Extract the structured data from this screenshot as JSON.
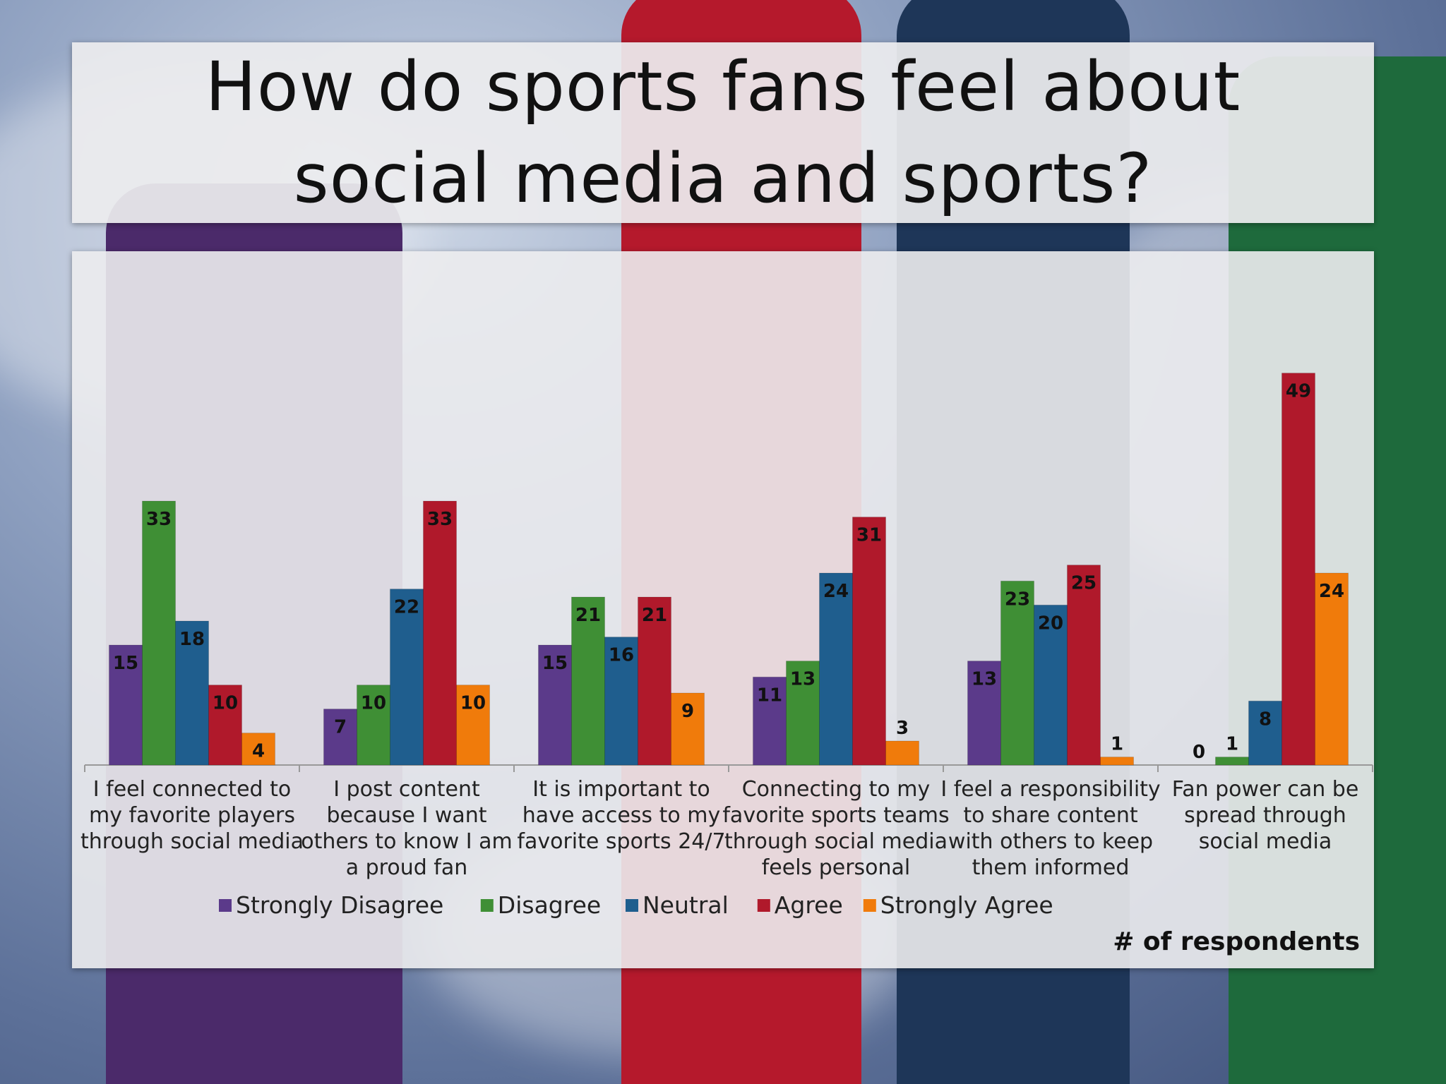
{
  "title": "How do sports fans feel about\nsocial media and sports?",
  "chart_data": {
    "type": "bar",
    "categories": [
      [
        "I feel connected to",
        "my favorite players",
        "through social media"
      ],
      [
        "I post content",
        "because I want",
        "others to know I am",
        "a proud fan"
      ],
      [
        "It is important to",
        "have access to my",
        "favorite sports 24/7"
      ],
      [
        "Connecting to my",
        "favorite sports teams",
        "through social media",
        "feels personal"
      ],
      [
        "I feel a responsibility",
        "to share content",
        "with others to keep",
        "them informed"
      ],
      [
        "Fan power can be",
        "spread through",
        "social media"
      ]
    ],
    "series": [
      {
        "name": "Strongly Disagree",
        "color": "#5b3a8a",
        "values": [
          15,
          7,
          15,
          11,
          13,
          0
        ]
      },
      {
        "name": "Disagree",
        "color": "#3f8f35",
        "values": [
          33,
          10,
          21,
          13,
          23,
          1
        ]
      },
      {
        "name": "Neutral",
        "color": "#1f5e8e",
        "values": [
          18,
          22,
          16,
          24,
          20,
          8
        ]
      },
      {
        "name": "Agree",
        "color": "#b0192b",
        "values": [
          10,
          33,
          21,
          31,
          25,
          49
        ]
      },
      {
        "name": "Strongly Agree",
        "color": "#f07b0b",
        "values": [
          4,
          10,
          9,
          3,
          1,
          24
        ]
      }
    ],
    "data_labels": true,
    "legend_position": "bottom",
    "axis_note": "# of respondents",
    "ylim": [
      0,
      60
    ],
    "grid": false
  }
}
